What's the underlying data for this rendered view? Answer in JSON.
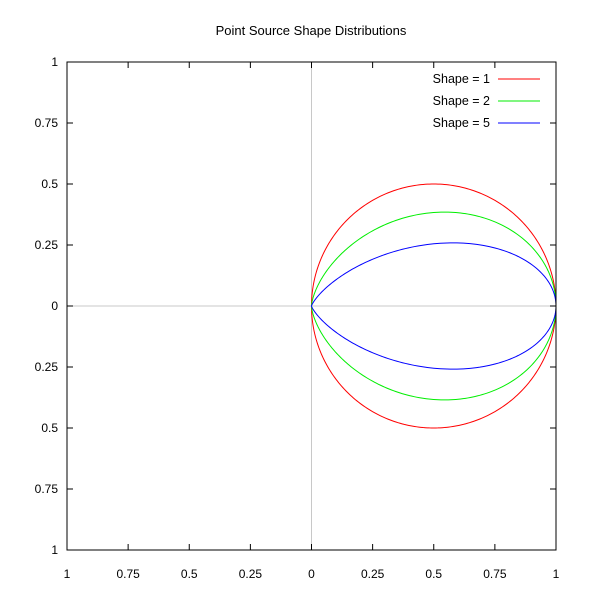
{
  "chart_data": {
    "type": "line",
    "title": "Point Source Shape Distributions",
    "xlabel": "",
    "ylabel": "",
    "xlim": [
      -1,
      1
    ],
    "ylim": [
      -1,
      1
    ],
    "grid": false,
    "zero_axes": true,
    "legend_position": "top-right",
    "x_ticks": [
      -1,
      -0.75,
      -0.5,
      -0.25,
      0,
      0.25,
      0.5,
      0.75,
      1
    ],
    "x_tick_labels": [
      "1",
      "0.75",
      "0.5",
      "0.25",
      "0",
      "0.25",
      "0.5",
      "0.75",
      "1"
    ],
    "y_ticks": [
      1,
      0.75,
      0.5,
      0.25,
      0,
      -0.25,
      -0.5,
      -0.75,
      -1
    ],
    "y_tick_labels": [
      "1",
      "0.75",
      "0.5",
      "0.25",
      "0",
      "0.25",
      "0.5",
      "0.75",
      "1"
    ],
    "series": [
      {
        "name": "Shape = 1",
        "shape": 1,
        "color": "#ff0000"
      },
      {
        "name": "Shape = 2",
        "shape": 2,
        "color": "#00ee00"
      },
      {
        "name": "Shape = 5",
        "shape": 5,
        "color": "#0000ff"
      }
    ],
    "axis_color": "#000000",
    "zero_axis_color": "#c8c8c8"
  }
}
